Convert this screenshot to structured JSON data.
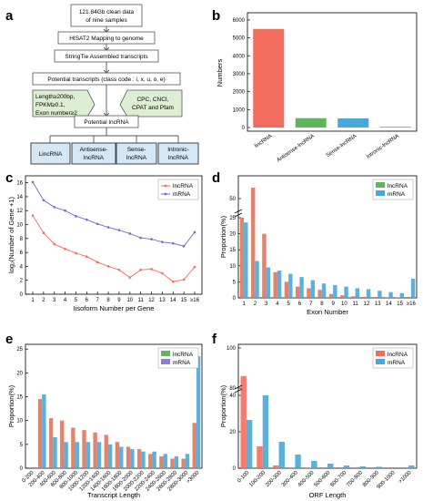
{
  "panels": {
    "a": "a",
    "b": "b",
    "c": "c",
    "d": "d",
    "e": "e",
    "f": "f"
  },
  "flowchart": {
    "step1": [
      "121.84Gb clean data",
      "of nine samples"
    ],
    "step2": "HISAT2 Mapping to genome",
    "step3": "StringTie Assembled transcripts",
    "step4": "Potential transcripts (class code : i, x, u, o, e)",
    "filter_left": [
      "Length≥200bp,",
      "FPKM≥0.1,",
      "Exon number≥2"
    ],
    "filter_right": [
      "CPC, CNCI,",
      "CPAT and Pfam"
    ],
    "step5": "Potential lncRNA",
    "outputs": [
      [
        "LincRNA"
      ],
      [
        "Antisense-",
        "lncRNA"
      ],
      [
        "Sense-",
        "lncRNA"
      ],
      [
        "Intronic-",
        "lncRNA"
      ]
    ]
  },
  "legend": {
    "lncRNA": "lncRNA",
    "mRNA": "mRNA"
  },
  "colors": {
    "lncRNA_red": "#f36d5e",
    "green": "#5fb55a",
    "blue": "#4aa8d8",
    "purple": "#9b7fc8"
  },
  "chart_data": [
    {
      "panel": "b",
      "type": "bar",
      "categories": [
        "lincRNA",
        "Antisense-lncRNA",
        "Sense-lncRNA",
        "Intronic-lncRNA"
      ],
      "values": [
        5500,
        520,
        510,
        40
      ],
      "ylabel": "Numbers",
      "yticks": [
        0,
        1000,
        2000,
        3000,
        4000,
        5000,
        6000
      ],
      "ylim": [
        0,
        6300
      ]
    },
    {
      "panel": "c",
      "type": "line",
      "x": [
        "1",
        "2",
        "3",
        "4",
        "5",
        "6",
        "7",
        "8",
        "9",
        "10",
        "11",
        "12",
        "13",
        "14",
        "15",
        "≥16"
      ],
      "series": [
        {
          "name": "lncRNA",
          "values": [
            11.3,
            8.8,
            7.2,
            6.5,
            5.9,
            5.4,
            4.6,
            4.0,
            3.5,
            2.4,
            3.5,
            3.6,
            3.0,
            1.8,
            2.1,
            3.9
          ]
        },
        {
          "name": "mRNA",
          "values": [
            16.1,
            13.5,
            12.5,
            12.0,
            11.2,
            10.7,
            10.1,
            9.6,
            9.2,
            8.7,
            8.1,
            7.9,
            7.5,
            7.3,
            6.9,
            8.9
          ]
        }
      ],
      "xlabel": "Iisoform Number per Gene",
      "ylabel": "log₂(Number of Gene +1)",
      "yticks": [
        0,
        2,
        4,
        6,
        8,
        10,
        12,
        14,
        16
      ],
      "ylim": [
        0,
        17
      ]
    },
    {
      "panel": "d",
      "type": "bar",
      "x": [
        "1",
        "2",
        "3",
        "4",
        "5",
        "6",
        "7",
        "8",
        "9",
        "10",
        "11",
        "12",
        "13",
        "14",
        "15",
        "≥16"
      ],
      "series": [
        {
          "name": "lncRNA",
          "values": [
            25,
            54,
            20,
            8,
            5,
            3.5,
            3,
            2.5,
            1.2,
            0.8,
            0.5,
            0.3,
            0.3,
            0.2,
            0.1,
            0.3
          ]
        },
        {
          "name": "mRNA",
          "values": [
            23.5,
            11.5,
            9.5,
            8.5,
            7.5,
            6.5,
            5.5,
            4.5,
            4,
            3.5,
            3,
            2.7,
            2.2,
            1.8,
            1.5,
            6
          ]
        }
      ],
      "xlabel": "Exon Number",
      "ylabel": "Proportion(%)",
      "axis_break": true,
      "yticks": [
        0,
        5,
        10,
        15,
        20,
        25,
        50
      ],
      "ylim": [
        0,
        55
      ]
    },
    {
      "panel": "e",
      "type": "bar",
      "categories": [
        "0-200",
        "200-400",
        "400-600",
        "600-800",
        "800-1000",
        "1000-1200",
        "1200-1400",
        "1400-1600",
        "1600-1800",
        "1800-2000",
        "2000-2200",
        "2200-2400",
        "2400-2600",
        "2600-2800",
        "2800-3000",
        ">3000"
      ],
      "series": [
        {
          "name": "lncRNA",
          "values": [
            0,
            14.5,
            10.5,
            10,
            8.5,
            8,
            7.5,
            7,
            5.5,
            4.5,
            4,
            3,
            2.5,
            2,
            2,
            9.5
          ]
        },
        {
          "name": "mRNA",
          "values": [
            0.2,
            15.5,
            6.5,
            5.5,
            5.5,
            5.5,
            5.5,
            5,
            4.5,
            4,
            3.5,
            3.5,
            3,
            2.5,
            3,
            23.5
          ]
        }
      ],
      "xlabel": "Transcript Length",
      "ylabel": "Proportion(%)",
      "yticks": [
        0,
        5,
        10,
        15,
        20,
        25
      ],
      "ylim": [
        0,
        26
      ]
    },
    {
      "panel": "f",
      "type": "bar",
      "categories": [
        "0-100",
        "100-200",
        "200-300",
        "300-400",
        "400-500",
        "500-600",
        "600-700",
        "700-800",
        "800-900",
        "900-1000",
        ">1000"
      ],
      "series": [
        {
          "name": "lncRNA",
          "values": [
            86,
            12,
            1.5,
            0.4,
            0.1,
            0,
            0,
            0,
            0,
            0,
            0
          ]
        },
        {
          "name": "mRNA",
          "values": [
            26.5,
            40,
            14.5,
            7.5,
            4,
            2.5,
            1.5,
            1,
            0.8,
            0.5,
            1.5
          ]
        }
      ],
      "xlabel": "ORF Length",
      "ylabel": "Proportion(%)",
      "axis_break": true,
      "yticks": [
        0,
        20,
        40,
        60,
        80,
        100
      ],
      "ylim": [
        0,
        100
      ]
    }
  ]
}
